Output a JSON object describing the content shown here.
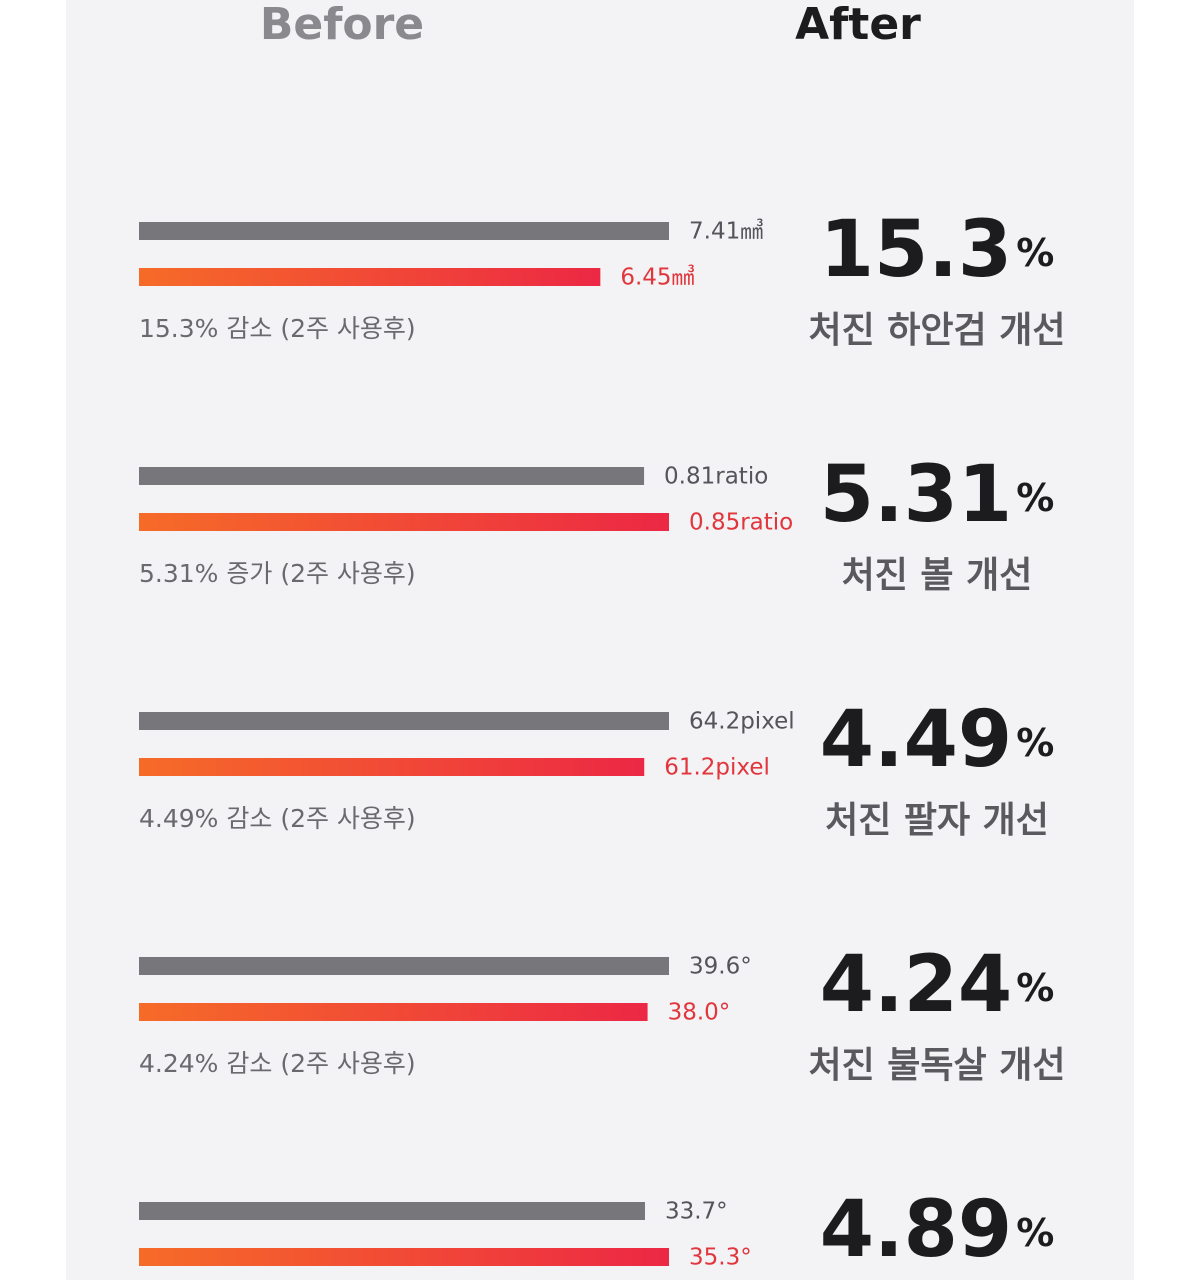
{
  "header": {
    "before": "Before",
    "after": "After"
  },
  "rows": [
    {
      "values": [
        7.41,
        6.45
      ],
      "value_labels": [
        "7.41㎣",
        "6.45㎣"
      ],
      "note": "15.3% 감소 (2주 사용후)",
      "change": 15.3,
      "unit": "%",
      "caption": "처진 하안검 개선"
    },
    {
      "values": [
        0.81,
        0.85
      ],
      "value_labels": [
        "0.81ratio",
        "0.85ratio"
      ],
      "note": "5.31% 증가 (2주 사용후)",
      "change": 5.31,
      "unit": "%",
      "caption": "처진 볼 개선"
    },
    {
      "values": [
        64.2,
        61.2
      ],
      "value_labels": [
        "64.2pixel",
        "61.2pixel"
      ],
      "note": "4.49% 감소 (2주 사용후)",
      "change": 4.49,
      "unit": "%",
      "caption": "처진 팔자 개선"
    },
    {
      "values": [
        39.6,
        38.0
      ],
      "value_labels": [
        "39.6°",
        "38.0°"
      ],
      "note": "4.24% 감소 (2주 사용후)",
      "change": 4.24,
      "unit": "%",
      "caption": "처진 불독살 개선"
    },
    {
      "values": [
        33.7,
        35.3
      ],
      "value_labels": [
        "33.7°",
        "35.3°"
      ],
      "change": 4.89,
      "unit": "%"
    }
  ]
}
